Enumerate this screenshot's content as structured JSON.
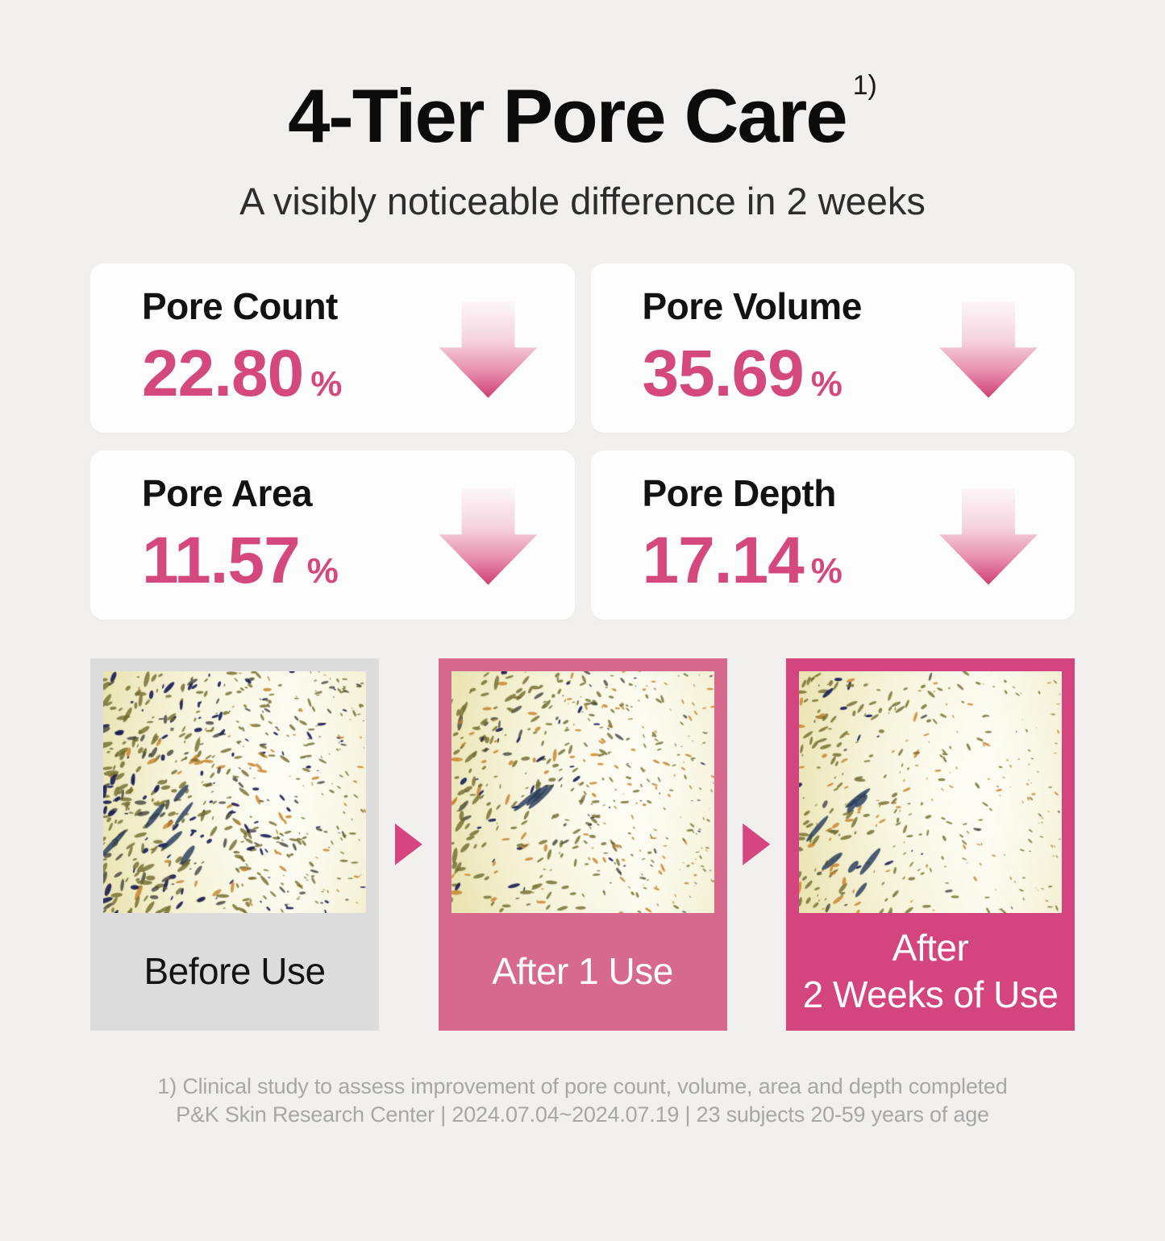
{
  "title": {
    "text": "4-Tier Pore Care",
    "superscript": "1)"
  },
  "subtitle": "A visibly noticeable difference in 2 weeks",
  "stats": [
    {
      "label": "Pore Count",
      "value": "22.80",
      "unit": "%"
    },
    {
      "label": "Pore Volume",
      "value": "35.69",
      "unit": "%"
    },
    {
      "label": "Pore Area",
      "value": "11.57",
      "unit": "%"
    },
    {
      "label": "Pore Depth",
      "value": "17.14",
      "unit": "%"
    }
  ],
  "comparison": {
    "panels": [
      {
        "label": "Before Use",
        "pore_density": "high"
      },
      {
        "label": "After 1 Use",
        "pore_density": "reduced"
      },
      {
        "label": "After\n2 Weeks of Use",
        "pore_density": "low"
      }
    ]
  },
  "footnote": {
    "line1": "1) Clinical study to assess improvement of pore count, volume, area and depth completed",
    "line2": "P&K Skin Research Center | 2024.07.04~2024.07.19 | 23 subjects 20-59 years of age"
  },
  "colors": {
    "accent_pink": "#d4487e",
    "arrow_gradient_top": "#fcf7f8",
    "arrow_gradient_bottom": "#ce3d72",
    "panel_before_bg": "#dcdcdc",
    "panel_after1_bg": "#d7698f",
    "panel_after2_bg": "#d4457f",
    "triangle_pink": "#d5457e",
    "page_bg": "#f1f0ee"
  }
}
